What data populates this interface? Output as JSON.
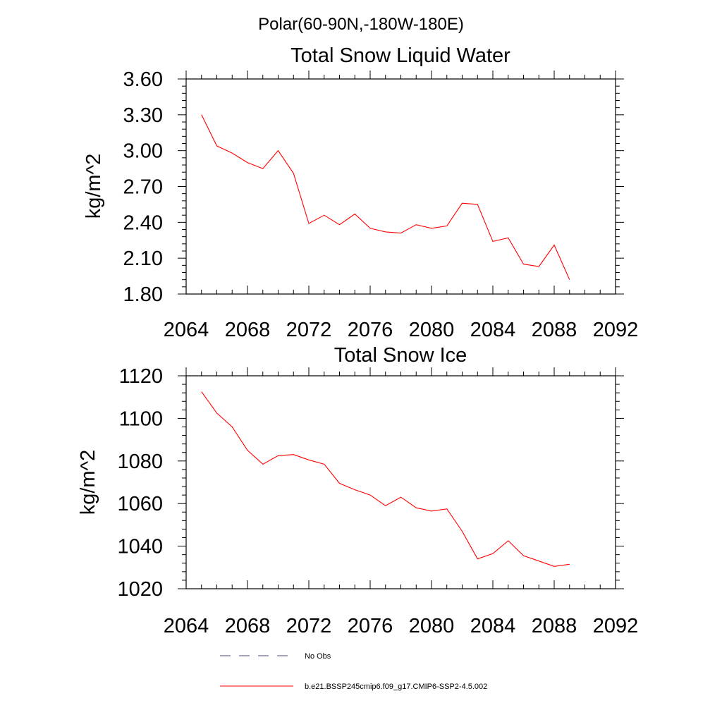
{
  "header": {
    "title": "Polar(60-90N,-180W-180E)"
  },
  "chart_data": [
    {
      "type": "line",
      "title": "Total Snow Liquid Water",
      "xlabel": "",
      "ylabel": "kg/m^2",
      "xlim": [
        2064,
        2092
      ],
      "ylim": [
        1.8,
        3.6
      ],
      "xticks": [
        2064,
        2068,
        2072,
        2076,
        2080,
        2084,
        2088,
        2092
      ],
      "xtick_labels": [
        "2064",
        "2068",
        "2072",
        "2076",
        "2080",
        "2084",
        "2088",
        "2092"
      ],
      "yticks": [
        1.8,
        2.1,
        2.4,
        2.7,
        3.0,
        3.3,
        3.6
      ],
      "ytick_labels": [
        "1.80",
        "2.10",
        "2.40",
        "2.70",
        "3.00",
        "3.30",
        "3.60"
      ],
      "grid": false,
      "x": [
        2065,
        2066,
        2067,
        2068,
        2069,
        2070,
        2071,
        2072,
        2073,
        2074,
        2075,
        2076,
        2077,
        2078,
        2079,
        2080,
        2081,
        2082,
        2083,
        2084,
        2085,
        2086,
        2087,
        2088,
        2089
      ],
      "series": [
        {
          "name": "b.e21.BSSP245cmip6.f09_g17.CMIP6-SSP2-4.5.002",
          "color": "#ff0000",
          "values": [
            3.3,
            3.04,
            2.98,
            2.9,
            2.85,
            3.0,
            2.81,
            2.39,
            2.46,
            2.38,
            2.47,
            2.35,
            2.32,
            2.31,
            2.38,
            2.35,
            2.37,
            2.56,
            2.55,
            2.24,
            2.27,
            2.05,
            2.03,
            2.21,
            1.92
          ]
        }
      ]
    },
    {
      "type": "line",
      "title": "Total Snow Ice",
      "xlabel": "",
      "ylabel": "kg/m^2",
      "xlim": [
        2064,
        2092
      ],
      "ylim": [
        1020,
        1120
      ],
      "xticks": [
        2064,
        2068,
        2072,
        2076,
        2080,
        2084,
        2088,
        2092
      ],
      "xtick_labels": [
        "2064",
        "2068",
        "2072",
        "2076",
        "2080",
        "2084",
        "2088",
        "2092"
      ],
      "yticks": [
        1020,
        1040,
        1060,
        1080,
        1100,
        1120
      ],
      "ytick_labels": [
        "1020",
        "1040",
        "1060",
        "1080",
        "1100",
        "1120"
      ],
      "grid": false,
      "x": [
        2065,
        2066,
        2067,
        2068,
        2069,
        2070,
        2071,
        2072,
        2073,
        2074,
        2075,
        2076,
        2077,
        2078,
        2079,
        2080,
        2081,
        2082,
        2083,
        2084,
        2085,
        2086,
        2087,
        2088,
        2089
      ],
      "series": [
        {
          "name": "b.e21.BSSP245cmip6.f09_g17.CMIP6-SSP2-4.5.002",
          "color": "#ff0000",
          "values": [
            1112.5,
            1102.5,
            1096,
            1085,
            1078.5,
            1082.5,
            1083,
            1080.5,
            1078.5,
            1069.5,
            1066.5,
            1064,
            1059,
            1063,
            1058,
            1056.5,
            1057.5,
            1047,
            1034,
            1036.5,
            1042.5,
            1035.5,
            1033,
            1030.5,
            1031.5
          ]
        }
      ]
    }
  ],
  "legend": {
    "placement": "bottom",
    "items": [
      {
        "label": "No Obs",
        "color": "#4a4a7a",
        "style": "dashed"
      },
      {
        "label": "b.e21.BSSP245cmip6.f09_g17.CMIP6-SSP2-4.5.002",
        "color": "#ff0000",
        "style": "solid"
      }
    ]
  }
}
